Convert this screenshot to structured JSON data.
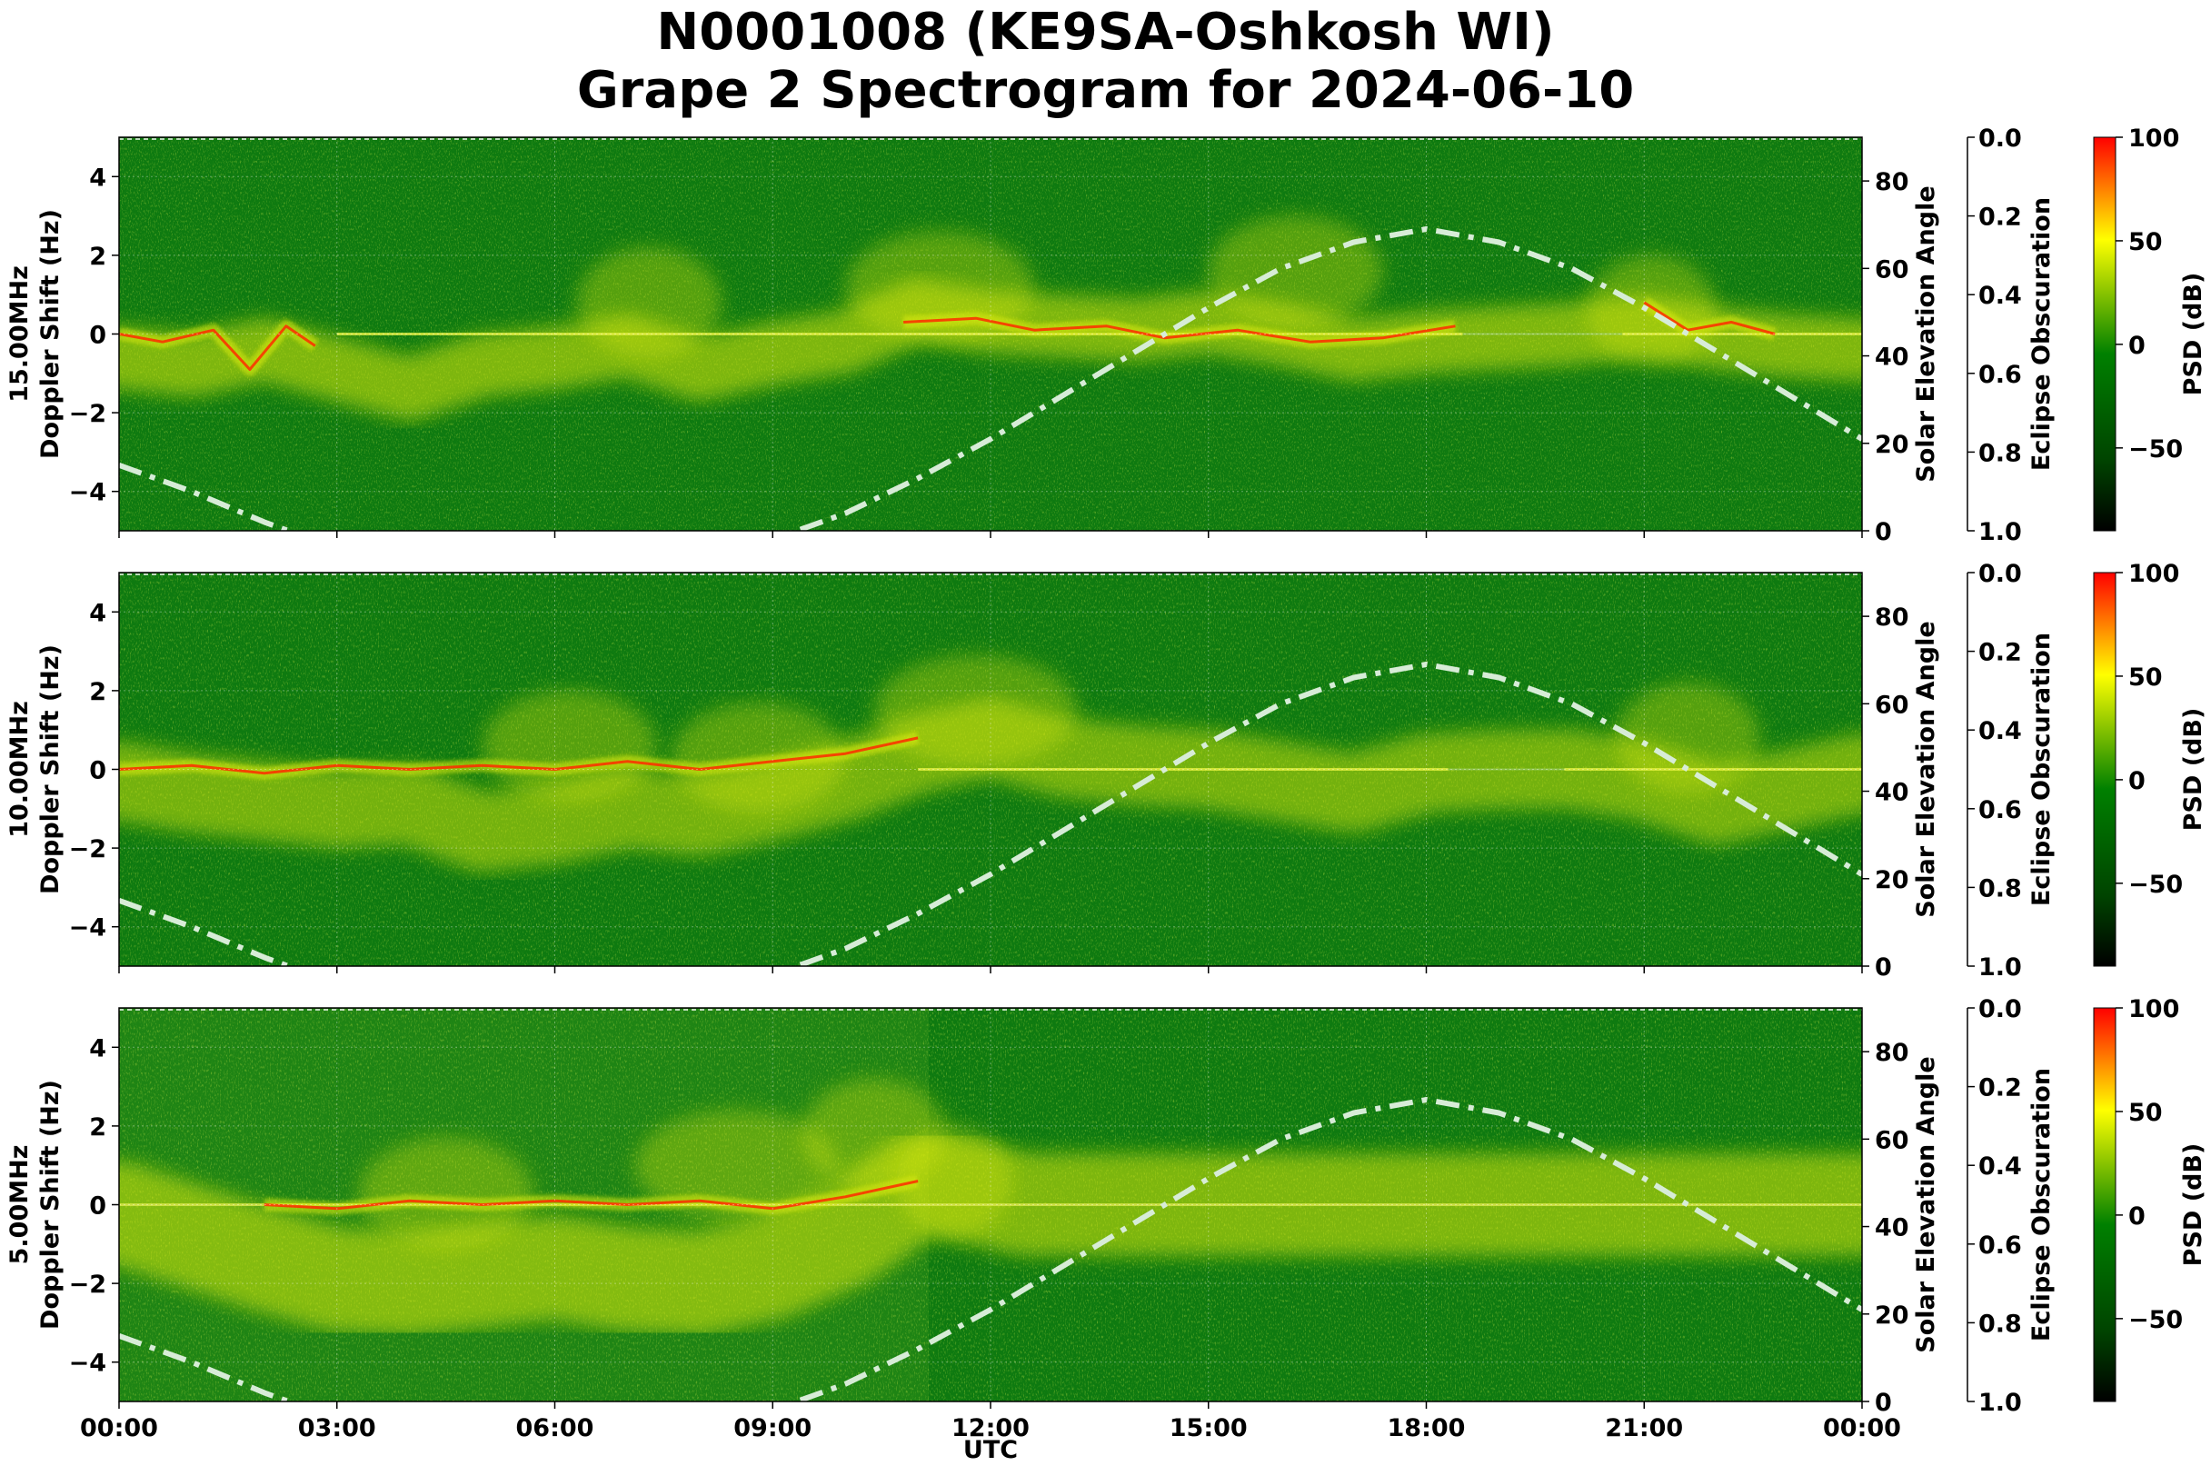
{
  "figure": {
    "title_line1": "N0001008 (KE9SA-Oshkosh WI)",
    "title_line2": "Grape 2 Spectrogram for 2024-06-10",
    "xlabel": "UTC"
  },
  "colors": {
    "background_green": "#0e7a10",
    "signal_yellow": "#d8e80a",
    "signal_red": "#ff2a00",
    "solar_curve": "#d7ecd7",
    "colormap": [
      "#000000",
      "#004400",
      "#008000",
      "#ffff00",
      "#ff0000"
    ]
  },
  "chart_data": [
    {
      "type": "heatmap",
      "name": "15.00MHz",
      "ylabel": "15.00MHz\nDoppler Shift (Hz)",
      "y2label": "Solar Elevation Angle",
      "y3label": "Eclipse Obscuration",
      "cbar_label": "PSD (dB)",
      "xlim": [
        "00:00",
        "00:00"
      ],
      "x_ticks": [
        "00:00",
        "03:00",
        "06:00",
        "09:00",
        "12:00",
        "15:00",
        "18:00",
        "21:00",
        "00:00"
      ],
      "ylim": [
        -5,
        5
      ],
      "y_ticks": [
        4,
        2,
        0,
        -2,
        -4
      ],
      "y2lim": [
        0,
        90
      ],
      "y2_ticks": [
        80,
        60,
        40,
        20,
        0
      ],
      "y3lim": [
        0.0,
        1.0
      ],
      "y3_ticks": [
        "0.0",
        "0.2",
        "0.4",
        "0.6",
        "0.8",
        "1.0"
      ],
      "cbar_range": [
        -90,
        100
      ],
      "cbar_ticks": [
        "100",
        "50",
        "0",
        "−50"
      ],
      "grid": true,
      "solar_elevation": {
        "x_hours": [
          0,
          1,
          2,
          3,
          4,
          5,
          6,
          7,
          8,
          9,
          10,
          11,
          12,
          13,
          14,
          15,
          16,
          17,
          18,
          19,
          20,
          21,
          22,
          23,
          24
        ],
        "values": [
          15,
          9,
          2,
          -4,
          -9,
          -12,
          -13,
          -11,
          -7,
          -2,
          4,
          12,
          21,
          31,
          41,
          51,
          60,
          66,
          69,
          66,
          60,
          51,
          41,
          31,
          21
        ]
      }
    },
    {
      "type": "heatmap",
      "name": "10.00MHz",
      "ylabel": "10.00MHz\nDoppler Shift (Hz)",
      "y2label": "Solar Elevation Angle",
      "y3label": "Eclipse Obscuration",
      "cbar_label": "PSD (dB)",
      "xlim": [
        "00:00",
        "00:00"
      ],
      "x_ticks": [
        "00:00",
        "03:00",
        "06:00",
        "09:00",
        "12:00",
        "15:00",
        "18:00",
        "21:00",
        "00:00"
      ],
      "ylim": [
        -5,
        5
      ],
      "y_ticks": [
        4,
        2,
        0,
        -2,
        -4
      ],
      "y2lim": [
        0,
        90
      ],
      "y2_ticks": [
        80,
        60,
        40,
        20,
        0
      ],
      "y3lim": [
        0.0,
        1.0
      ],
      "y3_ticks": [
        "0.0",
        "0.2",
        "0.4",
        "0.6",
        "0.8",
        "1.0"
      ],
      "cbar_range": [
        -90,
        100
      ],
      "cbar_ticks": [
        "100",
        "50",
        "0",
        "−50"
      ],
      "grid": true,
      "solar_elevation": {
        "x_hours": [
          0,
          1,
          2,
          3,
          4,
          5,
          6,
          7,
          8,
          9,
          10,
          11,
          12,
          13,
          14,
          15,
          16,
          17,
          18,
          19,
          20,
          21,
          22,
          23,
          24
        ],
        "values": [
          15,
          9,
          2,
          -4,
          -9,
          -12,
          -13,
          -11,
          -7,
          -2,
          4,
          12,
          21,
          31,
          41,
          51,
          60,
          66,
          69,
          66,
          60,
          51,
          41,
          31,
          21
        ]
      }
    },
    {
      "type": "heatmap",
      "name": "5.00MHz",
      "ylabel": "5.00MHz\nDoppler Shift (Hz)",
      "y2label": "Solar Elevation Angle",
      "y3label": "Eclipse Obscuration",
      "cbar_label": "PSD (dB)",
      "xlim": [
        "00:00",
        "00:00"
      ],
      "x_ticks": [
        "00:00",
        "03:00",
        "06:00",
        "09:00",
        "12:00",
        "15:00",
        "18:00",
        "21:00",
        "00:00"
      ],
      "ylim": [
        -5,
        5
      ],
      "y_ticks": [
        4,
        2,
        0,
        -2,
        -4
      ],
      "y2lim": [
        0,
        90
      ],
      "y2_ticks": [
        80,
        60,
        40,
        20,
        0
      ],
      "y3lim": [
        0.0,
        1.0
      ],
      "y3_ticks": [
        "0.0",
        "0.2",
        "0.4",
        "0.6",
        "0.8",
        "1.0"
      ],
      "cbar_range": [
        -90,
        100
      ],
      "cbar_ticks": [
        "100",
        "50",
        "0",
        "−50"
      ],
      "grid": true,
      "solar_elevation": {
        "x_hours": [
          0,
          1,
          2,
          3,
          4,
          5,
          6,
          7,
          8,
          9,
          10,
          11,
          12,
          13,
          14,
          15,
          16,
          17,
          18,
          19,
          20,
          21,
          22,
          23,
          24
        ],
        "values": [
          15,
          9,
          2,
          -4,
          -9,
          -12,
          -13,
          -11,
          -7,
          -2,
          4,
          12,
          21,
          31,
          41,
          51,
          60,
          66,
          69,
          66,
          60,
          51,
          41,
          31,
          21
        ]
      }
    }
  ]
}
